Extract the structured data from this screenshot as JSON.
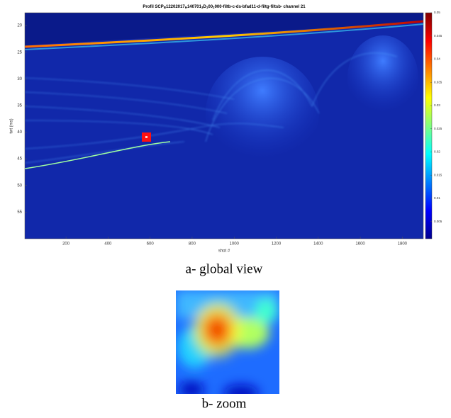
{
  "chart_data": {
    "type": "heatmap",
    "title": [
      "Profil SCP",
      "B",
      "12202017",
      "H",
      "140701",
      "3",
      "D",
      "1",
      "00",
      "2",
      "000-filtb-c-ds-bfad11-d-filtg-filtsb- channel 21"
    ],
    "x_label": "shot #",
    "y_label": "twt (ms)",
    "xlim": [
      4,
      1900
    ],
    "xticks": [
      200,
      400,
      600,
      800,
      1000,
      1200,
      1400,
      1600,
      1800
    ],
    "ylim": [
      17.6,
      60
    ],
    "yticks": [
      20,
      25,
      30,
      35,
      40,
      45,
      50,
      55
    ],
    "y_reversed": true,
    "clim": [
      0.0013,
      0.05
    ],
    "cticks": [
      0.005,
      0.01,
      0.015,
      0.02,
      0.025,
      0.03,
      0.035,
      0.04,
      0.045,
      0.05
    ],
    "colormap": [
      "#00008f",
      "#0000ff",
      "#0080ff",
      "#00ffff",
      "#80ff80",
      "#ffff00",
      "#ff8000",
      "#ff0000",
      "#800000"
    ]
  },
  "captions": [
    "a- global view",
    "b- zoom"
  ]
}
